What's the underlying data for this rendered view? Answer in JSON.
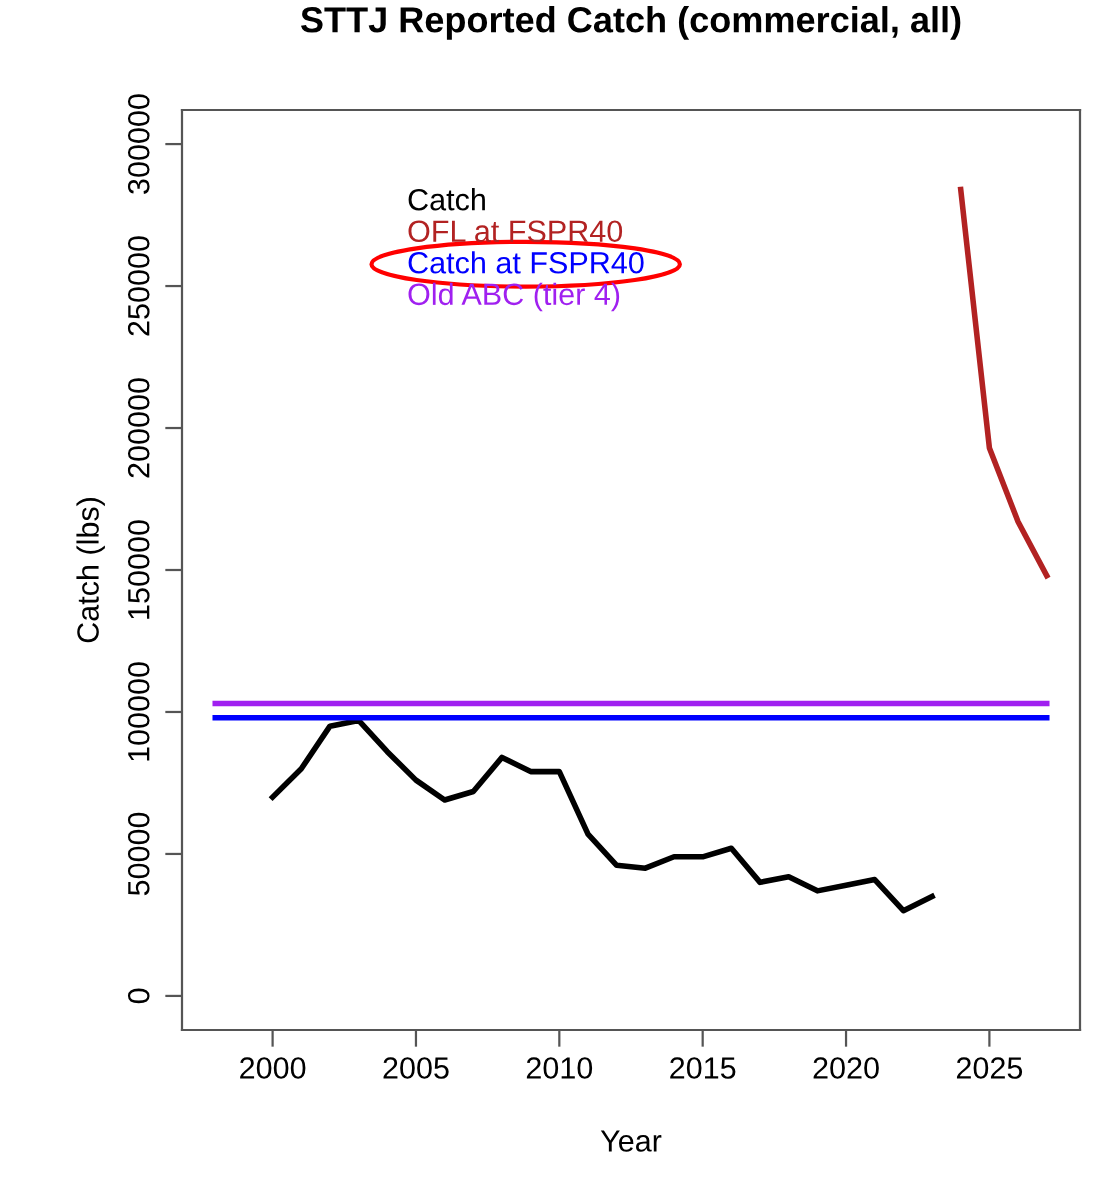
{
  "chart_data": {
    "type": "line",
    "title": "STTJ Reported Catch (commercial, all)",
    "xlabel": "Year",
    "ylabel": "Catch (lbs)",
    "series": [
      {
        "name": "Catch",
        "color": "#000000",
        "x": [
          2000,
          2001,
          2002,
          2003,
          2004,
          2005,
          2006,
          2007,
          2008,
          2009,
          2010,
          2011,
          2012,
          2013,
          2014,
          2015,
          2016,
          2017,
          2018,
          2019,
          2020,
          2021,
          2022,
          2023
        ],
        "values": [
          70000,
          80000,
          95000,
          97000,
          86000,
          76000,
          69000,
          72000,
          84000,
          79000,
          79000,
          57000,
          46000,
          45000,
          49000,
          49000,
          52000,
          40000,
          42000,
          37000,
          39000,
          41000,
          30000,
          35000
        ]
      },
      {
        "name": "OFL at FSPR40",
        "color": "#b22222",
        "x": [
          2024,
          2025,
          2026,
          2027
        ],
        "values": [
          284000,
          193000,
          167000,
          148000
        ]
      },
      {
        "name": "Catch at FSPR40",
        "color": "#0000ff",
        "x": [
          1998,
          2027
        ],
        "values": [
          98000,
          98000
        ]
      },
      {
        "name": "Old ABC (tier 4)",
        "color": "#a020f0",
        "x": [
          1998,
          2027
        ],
        "values": [
          103000,
          103000
        ]
      }
    ],
    "xlim": [
      1996.84,
      2028.16
    ],
    "ylim": [
      -12000,
      312000
    ],
    "xticks": [
      2000,
      2005,
      2010,
      2015,
      2020,
      2025
    ],
    "yticks": [
      0,
      50000,
      100000,
      150000,
      200000,
      250000,
      300000
    ],
    "legend": "top left",
    "grid": false,
    "marker": "none",
    "line_style": "solid"
  }
}
